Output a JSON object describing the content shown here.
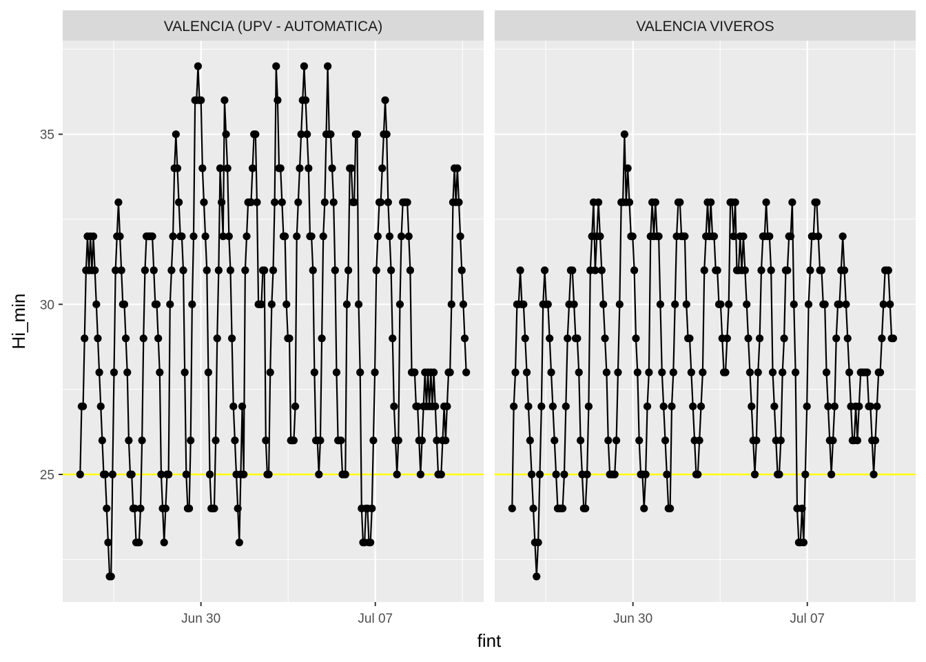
{
  "chart_data": {
    "type": "line",
    "facets": [
      {
        "label": "VALENCIA (UPV - AUTOMATICA)",
        "values": [
          25,
          27,
          27,
          29,
          31,
          32,
          31,
          32,
          31,
          32,
          31,
          30,
          29,
          28,
          27,
          26,
          25,
          25,
          24,
          23,
          22,
          22,
          25,
          28,
          31,
          32,
          33,
          32,
          31,
          30,
          30,
          29,
          28,
          26,
          25,
          25,
          24,
          24,
          23,
          23,
          23,
          24,
          26,
          29,
          31,
          32,
          32,
          32,
          32,
          32,
          31,
          30,
          30,
          29,
          28,
          25,
          24,
          23,
          24,
          25,
          25,
          30,
          31,
          32,
          34,
          35,
          34,
          33,
          32,
          32,
          31,
          28,
          25,
          24,
          24,
          26,
          30,
          32,
          36,
          36,
          37,
          36,
          36,
          34,
          33,
          32,
          31,
          28,
          25,
          24,
          24,
          24,
          26,
          29,
          31,
          34,
          33,
          32,
          36,
          35,
          34,
          32,
          31,
          29,
          27,
          26,
          25,
          24,
          23,
          25,
          27,
          25,
          31,
          32,
          33,
          33,
          33,
          34,
          35,
          35,
          33,
          30,
          30,
          30,
          31,
          31,
          26,
          25,
          25,
          28,
          30,
          31,
          33,
          37,
          36,
          34,
          34,
          33,
          32,
          32,
          30,
          29,
          29,
          26,
          26,
          26,
          27,
          32,
          33,
          34,
          35,
          36,
          37,
          36,
          35,
          34,
          32,
          32,
          31,
          28,
          26,
          26,
          25,
          26,
          29,
          32,
          33,
          35,
          37,
          35,
          35,
          34,
          33,
          31,
          28,
          26,
          26,
          26,
          25,
          25,
          25,
          30,
          31,
          34,
          34,
          33,
          33,
          35,
          35,
          30,
          28,
          24,
          23,
          23,
          24,
          24,
          23,
          23,
          24,
          26,
          28,
          31,
          32,
          33,
          33,
          34,
          35,
          36,
          35,
          33,
          32,
          31,
          29,
          27,
          26,
          25,
          26,
          30,
          32,
          33,
          33,
          33,
          33,
          32,
          31,
          28,
          28,
          28,
          27,
          27,
          26,
          25,
          26,
          27,
          28,
          27,
          28,
          27,
          28,
          27,
          28,
          27,
          26,
          25,
          25,
          25,
          26,
          27,
          26,
          27,
          28,
          28,
          30,
          33,
          34,
          33,
          34,
          33,
          32,
          31,
          30,
          29,
          28
        ],
        "span_days": 15.5
      },
      {
        "label": "VALENCIA VIVEROS",
        "values": [
          24,
          27,
          28,
          30,
          30,
          31,
          30,
          30,
          29,
          28,
          27,
          26,
          25,
          24,
          23,
          22,
          23,
          25,
          27,
          30,
          31,
          30,
          30,
          29,
          28,
          27,
          26,
          25,
          24,
          24,
          24,
          24,
          25,
          27,
          29,
          30,
          31,
          31,
          30,
          29,
          29,
          28,
          26,
          25,
          24,
          24,
          25,
          27,
          31,
          32,
          33,
          31,
          32,
          33,
          32,
          31,
          30,
          29,
          28,
          26,
          25,
          25,
          25,
          25,
          26,
          28,
          30,
          33,
          33,
          35,
          33,
          34,
          33,
          32,
          32,
          31,
          29,
          28,
          26,
          25,
          25,
          24,
          25,
          27,
          28,
          32,
          33,
          32,
          33,
          32,
          32,
          30,
          28,
          27,
          26,
          25,
          24,
          24,
          27,
          28,
          30,
          32,
          33,
          33,
          32,
          32,
          32,
          30,
          29,
          29,
          28,
          27,
          26,
          25,
          25,
          26,
          27,
          28,
          31,
          32,
          33,
          32,
          33,
          32,
          32,
          31,
          31,
          30,
          30,
          29,
          28,
          28,
          29,
          30,
          33,
          33,
          32,
          33,
          31,
          31,
          32,
          31,
          32,
          31,
          30,
          29,
          28,
          27,
          26,
          25,
          26,
          28,
          29,
          31,
          32,
          32,
          33,
          32,
          32,
          31,
          28,
          27,
          26,
          25,
          25,
          26,
          28,
          29,
          31,
          31,
          32,
          32,
          33,
          30,
          28,
          24,
          23,
          23,
          24,
          23,
          25,
          27,
          30,
          31,
          32,
          32,
          33,
          33,
          32,
          31,
          31,
          30,
          30,
          28,
          27,
          26,
          25,
          26,
          27,
          29,
          30,
          30,
          31,
          32,
          31,
          30,
          29,
          28,
          27,
          26,
          26,
          27,
          26,
          27,
          28,
          28,
          28,
          28,
          28,
          27,
          27,
          26,
          25,
          26,
          27,
          28,
          28,
          29,
          30,
          31,
          31,
          31,
          30,
          29,
          29
        ],
        "span_days": 15.3
      }
    ],
    "x_axis": {
      "title": "fint",
      "ticks": [
        {
          "label": "Jun 30",
          "day": 4.85
        },
        {
          "label": "Jul 07",
          "day": 11.85
        }
      ],
      "minor_ticks": [
        1.35,
        8.35,
        15.35
      ],
      "range": [
        -0.7,
        16.2
      ]
    },
    "y_axis": {
      "title": "Hi_min",
      "ticks": [
        25,
        30,
        35
      ],
      "minor_ticks": [
        22.5,
        27.5,
        32.5,
        37.5
      ],
      "range": [
        21.25,
        37.75
      ]
    },
    "reference_line": {
      "y": 25,
      "color": "#ffff00"
    },
    "colors": {
      "panel_bg": "#ebebeb",
      "strip_bg": "#d9d9d9",
      "grid": "#ffffff",
      "series": "#000000"
    },
    "grid": true
  }
}
